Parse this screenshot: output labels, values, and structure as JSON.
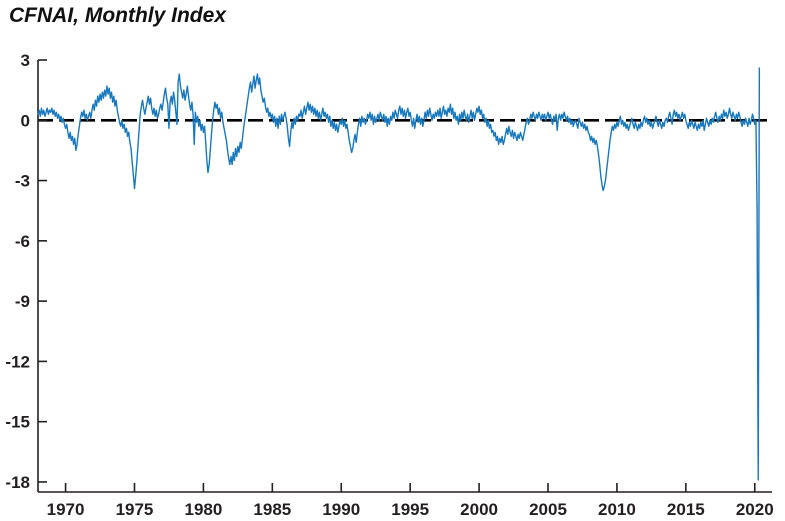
{
  "header": {
    "title": "CFNAI, Monthly Index"
  },
  "colors": {
    "background": "#ffffff",
    "line": "#1878be",
    "zero_line": "#000000",
    "axis": "#231f20",
    "text": "#231f20"
  },
  "chart_data": {
    "type": "line",
    "title": "CFNAI, Monthly Index",
    "xlabel": "",
    "ylabel": "",
    "grid": false,
    "legend": "none",
    "xlim": [
      1968.0,
      2021.25
    ],
    "ylim": [
      -18.5,
      3
    ],
    "xticks": [
      1970,
      1975,
      1980,
      1985,
      1990,
      1995,
      2000,
      2005,
      2010,
      2015,
      2020
    ],
    "yticks": [
      3,
      0,
      -3,
      -6,
      -9,
      -12,
      -15,
      -18
    ],
    "zero_line": {
      "y": 0,
      "color": "#000000",
      "style": "dashed",
      "width": 2.6
    },
    "series": [
      {
        "name": "CFNAI monthly index",
        "color": "#1878be",
        "x_start": 1968.0,
        "x_step": "monthly",
        "x_end": "2020-05",
        "values": [
          0.3,
          0.5,
          0.2,
          0.6,
          0.3,
          0.5,
          0.2,
          0.4,
          0.6,
          0.3,
          0.5,
          0.4,
          0.6,
          0.3,
          0.5,
          0.2,
          0.4,
          0.1,
          0.3,
          0.0,
          0.2,
          -0.1,
          0.1,
          -0.2,
          -0.4,
          -0.2,
          -0.6,
          -0.9,
          -0.6,
          -1.0,
          -0.8,
          -1.2,
          -0.9,
          -1.5,
          -1.2,
          -0.7,
          -0.3,
          0.1,
          0.4,
          0.2,
          0.5,
          0.1,
          0.3,
          0.0,
          0.2,
          0.4,
          0.1,
          0.5,
          0.8,
          0.5,
          1.0,
          0.7,
          1.2,
          0.9,
          1.3,
          1.0,
          1.4,
          1.1,
          1.5,
          1.2,
          1.7,
          1.3,
          1.6,
          1.1,
          1.4,
          0.9,
          1.2,
          0.7,
          1.0,
          0.5,
          0.2,
          -0.1,
          -0.3,
          0.0,
          -0.4,
          -0.2,
          -0.6,
          -0.4,
          -0.8,
          -0.6,
          -1.1,
          -1.4,
          -2.1,
          -2.7,
          -3.4,
          -2.8,
          -2.1,
          -1.3,
          -0.5,
          0.3,
          0.7,
          1.0,
          0.6,
          0.3,
          0.6,
          0.9,
          1.2,
          0.8,
          1.1,
          0.6,
          0.3,
          0.6,
          0.2,
          0.5,
          0.1,
          0.3,
          0.6,
          0.8,
          0.5,
          0.9,
          1.3,
          1.6,
          1.1,
          0.8,
          -0.4,
          0.9,
          1.2,
          0.8,
          1.4,
          1.0,
          0.4,
          -0.2,
          1.9,
          2.3,
          1.7,
          1.4,
          1.1,
          1.5,
          1.0,
          1.3,
          1.7,
          1.2,
          0.8,
          0.5,
          0.9,
          0.3,
          -1.2,
          0.4,
          -0.1,
          0.2,
          -0.3,
          0.0,
          -0.5,
          -0.2,
          -0.6,
          -0.3,
          -1.1,
          -2.0,
          -2.6,
          -2.2,
          -1.5,
          -0.7,
          0.0,
          0.5,
          0.9,
          0.6,
          0.8,
          0.3,
          0.6,
          0.1,
          0.4,
          -0.1,
          -0.4,
          -0.7,
          -1.0,
          -1.5,
          -1.9,
          -2.2,
          -1.8,
          -2.2,
          -1.6,
          -2.0,
          -1.4,
          -1.8,
          -1.3,
          -1.6,
          -1.1,
          -1.4,
          -0.9,
          -0.4,
          0.0,
          0.4,
          0.8,
          1.2,
          1.6,
          1.9,
          1.4,
          1.8,
          2.2,
          1.6,
          2.0,
          2.3,
          1.8,
          2.1,
          1.5,
          1.2,
          0.9,
          1.1,
          0.7,
          0.4,
          0.6,
          0.2,
          0.4,
          0.1,
          0.3,
          -0.1,
          0.2,
          -0.3,
          0.1,
          -0.4,
          0.2,
          -0.2,
          0.3,
          0.0,
          0.2,
          0.4,
          0.1,
          -0.3,
          -0.9,
          -1.3,
          -0.6,
          -0.1,
          -0.4,
          0.1,
          -0.2,
          0.2,
          0.0,
          0.3,
          0.2,
          0.5,
          0.1,
          0.4,
          0.7,
          0.3,
          0.6,
          0.9,
          0.5,
          0.8,
          0.4,
          0.7,
          0.3,
          0.6,
          0.2,
          0.5,
          0.1,
          0.4,
          0.0,
          0.3,
          0.6,
          0.2,
          0.4,
          0.1,
          0.3,
          -0.1,
          0.2,
          -0.3,
          0.0,
          -0.4,
          -0.1,
          -0.5,
          -0.2,
          -0.6,
          -0.3,
          0.0,
          -0.2,
          0.1,
          -0.3,
          0.0,
          -0.4,
          -0.2,
          -0.6,
          -1.0,
          -1.3,
          -1.6,
          -1.4,
          -1.0,
          -0.7,
          -1.1,
          -0.6,
          -0.2,
          0.1,
          -0.3,
          0.2,
          -0.1,
          0.1,
          -0.2,
          0.0,
          0.3,
          0.1,
          0.4,
          0.0,
          0.3,
          -0.2,
          0.2,
          -0.1,
          0.1,
          0.3,
          0.0,
          0.4,
          0.2,
          0.0,
          0.3,
          -0.1,
          0.2,
          -0.3,
          0.1,
          -0.2,
          0.2,
          0.0,
          0.4,
          0.1,
          0.5,
          0.3,
          0.1,
          0.5,
          0.7,
          0.3,
          0.6,
          0.2,
          0.5,
          0.1,
          0.4,
          0.6,
          0.2,
          0.4,
          0.0,
          -0.3,
          0.1,
          -0.4,
          0.0,
          0.3,
          -0.1,
          0.2,
          -0.2,
          0.1,
          -0.3,
          0.0,
          0.4,
          0.1,
          0.5,
          0.2,
          0.6,
          0.3,
          0.0,
          0.3,
          0.1,
          0.4,
          0.2,
          0.5,
          0.2,
          0.6,
          0.1,
          0.4,
          0.7,
          0.3,
          0.5,
          0.2,
          0.6,
          0.4,
          0.8,
          0.3,
          0.6,
          0.1,
          0.4,
          0.0,
          0.2,
          -0.2,
          0.3,
          0.0,
          0.4,
          0.1,
          0.5,
          0.2,
          0.0,
          0.3,
          -0.1,
          0.2,
          0.5,
          0.1,
          0.4,
          0.0,
          0.3,
          0.6,
          0.4,
          0.7,
          0.3,
          0.5,
          0.1,
          0.3,
          -0.1,
          0.1,
          -0.3,
          0.0,
          -0.4,
          -0.2,
          -0.6,
          -0.5,
          -0.8,
          -0.6,
          -1.0,
          -0.8,
          -1.2,
          -0.9,
          -1.1,
          -0.8,
          -1.2,
          -1.0,
          -0.7,
          -0.4,
          -0.7,
          -0.3,
          -0.6,
          -0.8,
          -0.5,
          -0.9,
          -0.6,
          -0.8,
          -1.0,
          -0.7,
          -0.9,
          -0.6,
          -0.8,
          -1.0,
          -0.7,
          -0.4,
          -0.1,
          0.1,
          -0.2,
          0.0,
          0.3,
          0.1,
          0.4,
          0.2,
          0.0,
          0.3,
          0.1,
          0.4,
          0.2,
          0.0,
          0.3,
          0.1,
          0.3,
          0.0,
          0.2,
          0.4,
          0.1,
          0.3,
          0.0,
          -0.2,
          0.2,
          0.0,
          0.3,
          -0.5,
          0.1,
          0.3,
          0.0,
          0.3,
          0.1,
          0.4,
          0.2,
          0.0,
          0.2,
          -0.1,
          0.1,
          -0.2,
          0.0,
          -0.3,
          -0.1,
          0.0,
          -0.2,
          -0.4,
          0.1,
          -0.1,
          -0.3,
          -0.1,
          -0.4,
          -0.2,
          -0.5,
          -0.3,
          -0.6,
          -0.7,
          -1.0,
          -0.8,
          -1.1,
          -0.9,
          -1.2,
          -1.0,
          -1.3,
          -1.7,
          -2.2,
          -2.8,
          -3.2,
          -3.5,
          -3.3,
          -3.0,
          -2.5,
          -2.0,
          -1.5,
          -1.0,
          -0.6,
          -0.3,
          -0.5,
          -0.2,
          -0.4,
          -0.1,
          -0.3,
          0.0,
          0.2,
          -0.2,
          0.0,
          -0.3,
          -0.1,
          -0.4,
          -0.2,
          -0.5,
          -0.3,
          -0.1,
          0.1,
          -0.2,
          -0.4,
          -0.1,
          -0.3,
          -0.5,
          -0.2,
          -0.4,
          -0.1,
          -0.3,
          0.0,
          0.2,
          -0.1,
          0.1,
          -0.2,
          0.0,
          -0.3,
          -0.1,
          -0.4,
          -0.2,
          0.0,
          0.2,
          -0.1,
          -0.3,
          0.0,
          -0.2,
          -0.4,
          -0.1,
          -0.3,
          0.0,
          0.1,
          -0.1,
          0.2,
          0.4,
          0.1,
          -0.2,
          0.3,
          0.5,
          0.2,
          0.4,
          0.1,
          0.3,
          0.0,
          0.2,
          0.4,
          0.1,
          0.3,
          0.0,
          -0.2,
          -0.4,
          -0.1,
          -0.3,
          0.0,
          -0.2,
          -0.4,
          -0.1,
          -0.3,
          -0.5,
          -0.2,
          -0.4,
          -0.1,
          -0.3,
          0.0,
          -0.5,
          -0.2,
          0.1,
          -0.1,
          -0.3,
          0.0,
          -0.2,
          0.1,
          -0.1,
          0.2,
          0.4,
          0.1,
          -0.1,
          0.2,
          0.0,
          0.3,
          0.1,
          0.5,
          0.2,
          0.4,
          0.1,
          0.3,
          0.6,
          0.3,
          0.1,
          0.4,
          0.2,
          0.0,
          0.3,
          0.1,
          0.4,
          0.2,
          -0.1,
          -0.3,
          0.0,
          -0.2,
          0.1,
          -0.1,
          -0.3,
          0.1,
          -0.2,
          0.0,
          0.3,
          0.1,
          -0.2,
          0.0,
          -4.4,
          -17.9,
          2.6
        ]
      }
    ]
  }
}
